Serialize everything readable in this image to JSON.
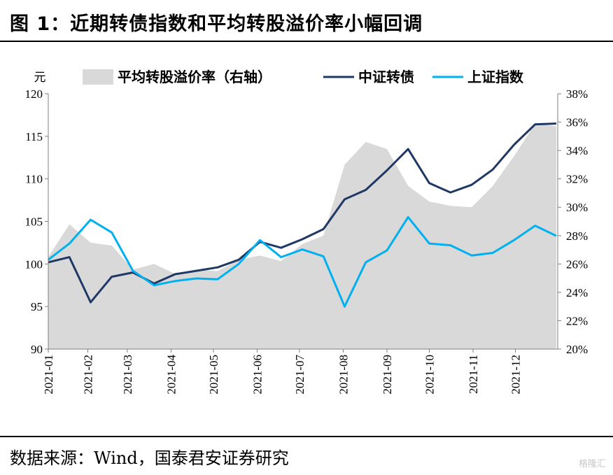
{
  "title": "图 1：近期转债指数和平均转股溢价率小幅回调",
  "source": "数据来源：Wind，国泰君安证券研究",
  "watermark": "格隆汇",
  "chart_data": {
    "type": "line",
    "ylabel": "元",
    "ylim": [
      90,
      120
    ],
    "y2lim": [
      20,
      38
    ],
    "yticks": [
      90,
      95,
      100,
      105,
      110,
      115,
      120
    ],
    "y2ticks": [
      "20%",
      "22%",
      "24%",
      "26%",
      "28%",
      "30%",
      "32%",
      "34%",
      "36%",
      "38%"
    ],
    "xticks": [
      "2021-01",
      "2021-02",
      "2021-03",
      "2021-04",
      "2021-05",
      "2021-06",
      "2021-07",
      "2021-08",
      "2021-09",
      "2021-10",
      "2021-11",
      "2021-12"
    ],
    "x": [
      "2021-01-04",
      "2021-01-19",
      "2021-02-03",
      "2021-02-18",
      "2021-03-05",
      "2021-03-20",
      "2021-04-04",
      "2021-04-19",
      "2021-05-04",
      "2021-05-19",
      "2021-06-03",
      "2021-06-18",
      "2021-07-03",
      "2021-07-18",
      "2021-08-02",
      "2021-08-17",
      "2021-09-01",
      "2021-09-16",
      "2021-10-01",
      "2021-10-16",
      "2021-10-31",
      "2021-11-15",
      "2021-11-30",
      "2021-12-15",
      "2021-12-30"
    ],
    "series": [
      {
        "name": "平均转股溢价率（右轴）",
        "axis": "right",
        "color": "#d9d9d9",
        "values": [
          26.5,
          28.8,
          27.5,
          27.3,
          25.6,
          26.0,
          25.3,
          25.6,
          25.5,
          26.3,
          26.6,
          26.2,
          27.4,
          28.0,
          33.0,
          34.6,
          34.1,
          31.5,
          30.4,
          30.1,
          30.0,
          31.5,
          33.6,
          35.9,
          35.7
        ]
      },
      {
        "name": "中证转债",
        "axis": "left",
        "color": "#1f3864",
        "values": [
          100.2,
          100.8,
          95.5,
          98.5,
          99.0,
          97.7,
          98.8,
          99.2,
          99.6,
          100.5,
          102.6,
          101.9,
          102.9,
          104.1,
          107.6,
          108.7,
          111.0,
          113.5,
          109.5,
          108.4,
          109.3,
          111.1,
          114.0,
          116.4,
          116.5
        ]
      },
      {
        "name": "上证指数",
        "axis": "left",
        "color": "#00b0f0",
        "values": [
          100.5,
          102.4,
          105.2,
          103.7,
          99.2,
          97.5,
          98.0,
          98.3,
          98.2,
          100.0,
          102.8,
          100.8,
          101.7,
          100.9,
          95.0,
          100.2,
          101.6,
          105.5,
          102.4,
          102.2,
          101.0,
          101.3,
          102.8,
          104.5,
          103.3
        ]
      }
    ]
  }
}
